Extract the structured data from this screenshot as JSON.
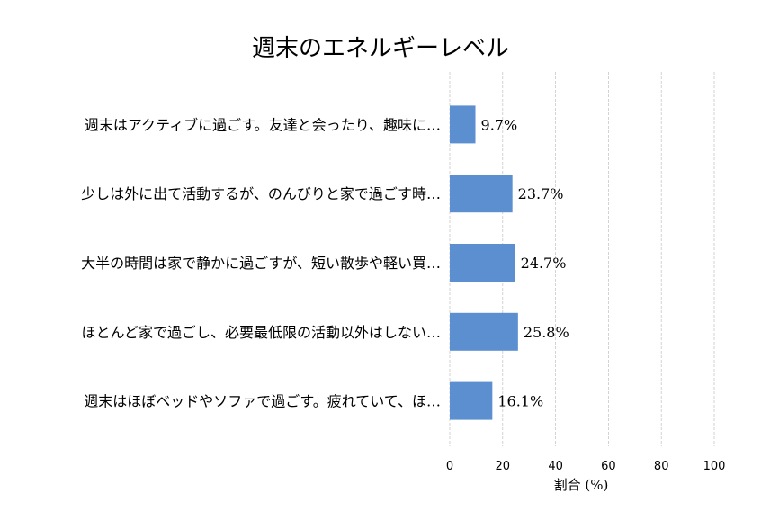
{
  "chart_data": {
    "type": "bar",
    "orientation": "horizontal",
    "title": "週末のエネルギーレベル",
    "xlabel": "割合 (%)",
    "ylabel": "",
    "categories": [
      "週末はアクティブに過ごす。友達と会ったり、趣味に…",
      "少しは外に出て活動するが、のんびりと家で過ごす時…",
      "大半の時間は家で静かに過ごすが、短い散歩や軽い買…",
      "ほとんど家で過ごし、必要最低限の活動以外はしない…",
      "週末はほぼベッドやソファで過ごす。疲れていて、ほ…"
    ],
    "values": [
      9.7,
      23.7,
      24.7,
      25.8,
      16.1
    ],
    "value_labels": [
      "9.7%",
      "23.7%",
      "24.7%",
      "25.8%",
      "16.1%"
    ],
    "xlim": [
      0,
      100
    ],
    "xticks": [
      0,
      20,
      40,
      60,
      80,
      100
    ],
    "xtick_labels": [
      "0",
      "20",
      "40",
      "60",
      "80",
      "100"
    ],
    "grid": "vertical dashed",
    "bar_color": "#5b8fd0"
  }
}
